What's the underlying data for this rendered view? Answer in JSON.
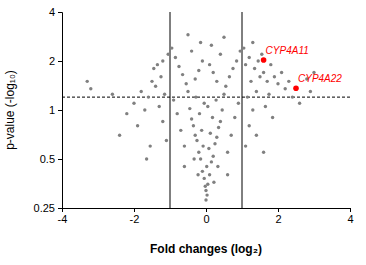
{
  "chart_data": {
    "type": "scatter",
    "x_label": "Fold changes (log₂)",
    "y_label": "p-value (-log₁₀)",
    "xlim": [
      -4,
      4
    ],
    "xticks": [
      -4,
      -2,
      0,
      2,
      4
    ],
    "ylim": [
      0.25,
      4
    ],
    "yticks": [
      0.25,
      0.5,
      1,
      2,
      4
    ],
    "log": "y",
    "vlines": [
      -1,
      1
    ],
    "hlines": [
      1.2
    ],
    "series": [
      {
        "color": "#808080",
        "marker": "circle",
        "x": [
          0.0,
          0.05,
          -0.05,
          0.1,
          -0.1,
          0.02,
          0.15,
          -0.15,
          0.2,
          -0.2,
          0.08,
          -0.08,
          0.25,
          -0.25,
          0.3,
          -0.3,
          0.12,
          -0.12,
          0.35,
          -0.35,
          0.4,
          -0.4,
          0.18,
          -0.18,
          0.45,
          -0.45,
          0.05,
          -0.05,
          0.28,
          -0.28,
          0.5,
          -0.5,
          0.0,
          0.03,
          -0.02,
          0.6,
          -0.6,
          0.7,
          -0.7,
          0.8,
          -0.8,
          0.9,
          -0.9,
          0.55,
          -0.55,
          0.65,
          -0.65,
          0.75,
          -0.75,
          0.85,
          -0.85,
          0.95,
          -0.95,
          0.3,
          -0.3,
          0.2,
          -0.2,
          0.1,
          -0.1,
          0.4,
          -0.4,
          0.15,
          -0.15,
          0.5,
          -0.5,
          1.1,
          1.2,
          1.3,
          1.15,
          1.4,
          1.25,
          1.5,
          1.35,
          1.6,
          1.45,
          1.7,
          1.8,
          1.9,
          2.0,
          2.1,
          1.55,
          1.2,
          1.05,
          1.3,
          2.2,
          2.3,
          1.75,
          1.65,
          1.85,
          2.4,
          2.6,
          2.8,
          3.0,
          2.9,
          1.1,
          1.4,
          1.6,
          -1.1,
          -1.2,
          -1.3,
          -1.15,
          -1.4,
          -1.25,
          -1.5,
          -1.35,
          -1.6,
          -1.45,
          -1.7,
          -1.8,
          -1.9,
          -2.0,
          -2.2,
          -1.05,
          -1.2,
          -2.4,
          -1.55,
          -3.3,
          -3.2,
          -2.6,
          -1.65,
          0.22,
          -0.22,
          0.33,
          -0.33,
          0.6,
          -0.6
        ],
        "values": [
          0.32,
          0.35,
          0.38,
          0.4,
          0.42,
          0.45,
          0.48,
          0.5,
          0.52,
          0.55,
          0.58,
          0.6,
          0.62,
          0.65,
          0.68,
          0.7,
          0.72,
          0.75,
          0.78,
          0.8,
          0.85,
          0.88,
          0.9,
          0.95,
          1.0,
          1.02,
          1.05,
          1.1,
          1.15,
          1.2,
          1.25,
          1.3,
          0.28,
          0.3,
          0.34,
          0.55,
          0.6,
          0.7,
          0.75,
          0.9,
          0.95,
          1.1,
          1.15,
          1.4,
          1.45,
          1.6,
          1.65,
          1.8,
          1.85,
          2.0,
          2.1,
          2.3,
          2.4,
          1.5,
          1.55,
          1.7,
          1.75,
          1.9,
          2.0,
          2.2,
          2.3,
          2.5,
          2.6,
          2.8,
          2.9,
          0.6,
          0.8,
          1.0,
          1.2,
          1.3,
          1.5,
          1.6,
          1.8,
          1.7,
          2.0,
          1.5,
          1.9,
          1.6,
          1.45,
          1.7,
          2.2,
          2.1,
          2.4,
          2.6,
          1.35,
          1.5,
          1.25,
          1.05,
          0.9,
          1.2,
          1.1,
          1.55,
          1.7,
          1.3,
          1.9,
          0.7,
          0.55,
          0.65,
          0.85,
          1.05,
          1.25,
          1.4,
          1.6,
          1.5,
          1.9,
          1.2,
          1.8,
          1.0,
          1.3,
          0.8,
          1.1,
          0.95,
          2.2,
          2.0,
          0.7,
          0.6,
          1.5,
          1.35,
          1.25,
          0.5,
          0.36,
          0.4,
          0.45,
          0.5,
          0.4,
          0.45
        ]
      },
      {
        "color": "#ff0000",
        "marker": "circle",
        "x": [
          1.6,
          2.5
        ],
        "values": [
          2.03,
          1.36
        ]
      }
    ],
    "annotations": [
      {
        "text": "CYP4A11",
        "color": "#ff0000"
      },
      {
        "text": "CYP4A22",
        "color": "#ff0000"
      }
    ]
  }
}
